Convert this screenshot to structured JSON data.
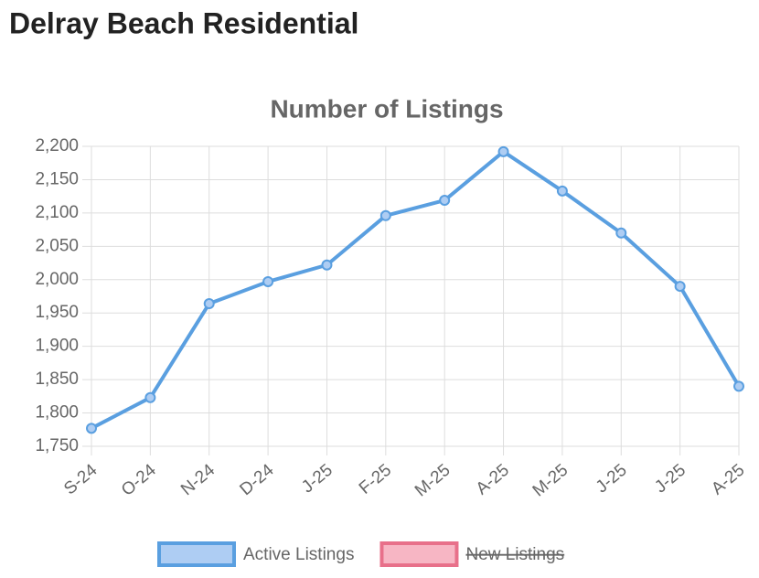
{
  "page_title": "Delray Beach Residential",
  "chart_data": {
    "type": "line",
    "title": "Number of Listings",
    "categories": [
      "S-24",
      "O-24",
      "N-24",
      "D-24",
      "J-25",
      "F-25",
      "M-25",
      "A-25",
      "M-25",
      "J-25",
      "J-25",
      "A-25"
    ],
    "series": [
      {
        "name": "Active Listings",
        "color": "#5a9fe0",
        "fill": "#aecdf3",
        "hidden": false,
        "values": [
          1777,
          1823,
          1964,
          1997,
          2022,
          2096,
          2119,
          2192,
          2133,
          2070,
          1990,
          1840
        ]
      },
      {
        "name": "New Listings",
        "color": "#e8708a",
        "fill": "#f7b6c4",
        "hidden": true,
        "values": [
          null,
          null,
          null,
          null,
          null,
          null,
          null,
          null,
          null,
          null,
          null,
          null
        ]
      }
    ],
    "ylim": [
      1750,
      2200
    ],
    "yticks": [
      {
        "value": 1750,
        "label": "1,750"
      },
      {
        "value": 1800,
        "label": "1,800"
      },
      {
        "value": 1850,
        "label": "1,850"
      },
      {
        "value": 1900,
        "label": "1,900"
      },
      {
        "value": 1950,
        "label": "1,950"
      },
      {
        "value": 2000,
        "label": "2,000"
      },
      {
        "value": 2050,
        "label": "2,050"
      },
      {
        "value": 2100,
        "label": "2,100"
      },
      {
        "value": 2150,
        "label": "2,150"
      },
      {
        "value": 2200,
        "label": "2,200"
      }
    ],
    "grid": true,
    "legend": "bottom"
  }
}
